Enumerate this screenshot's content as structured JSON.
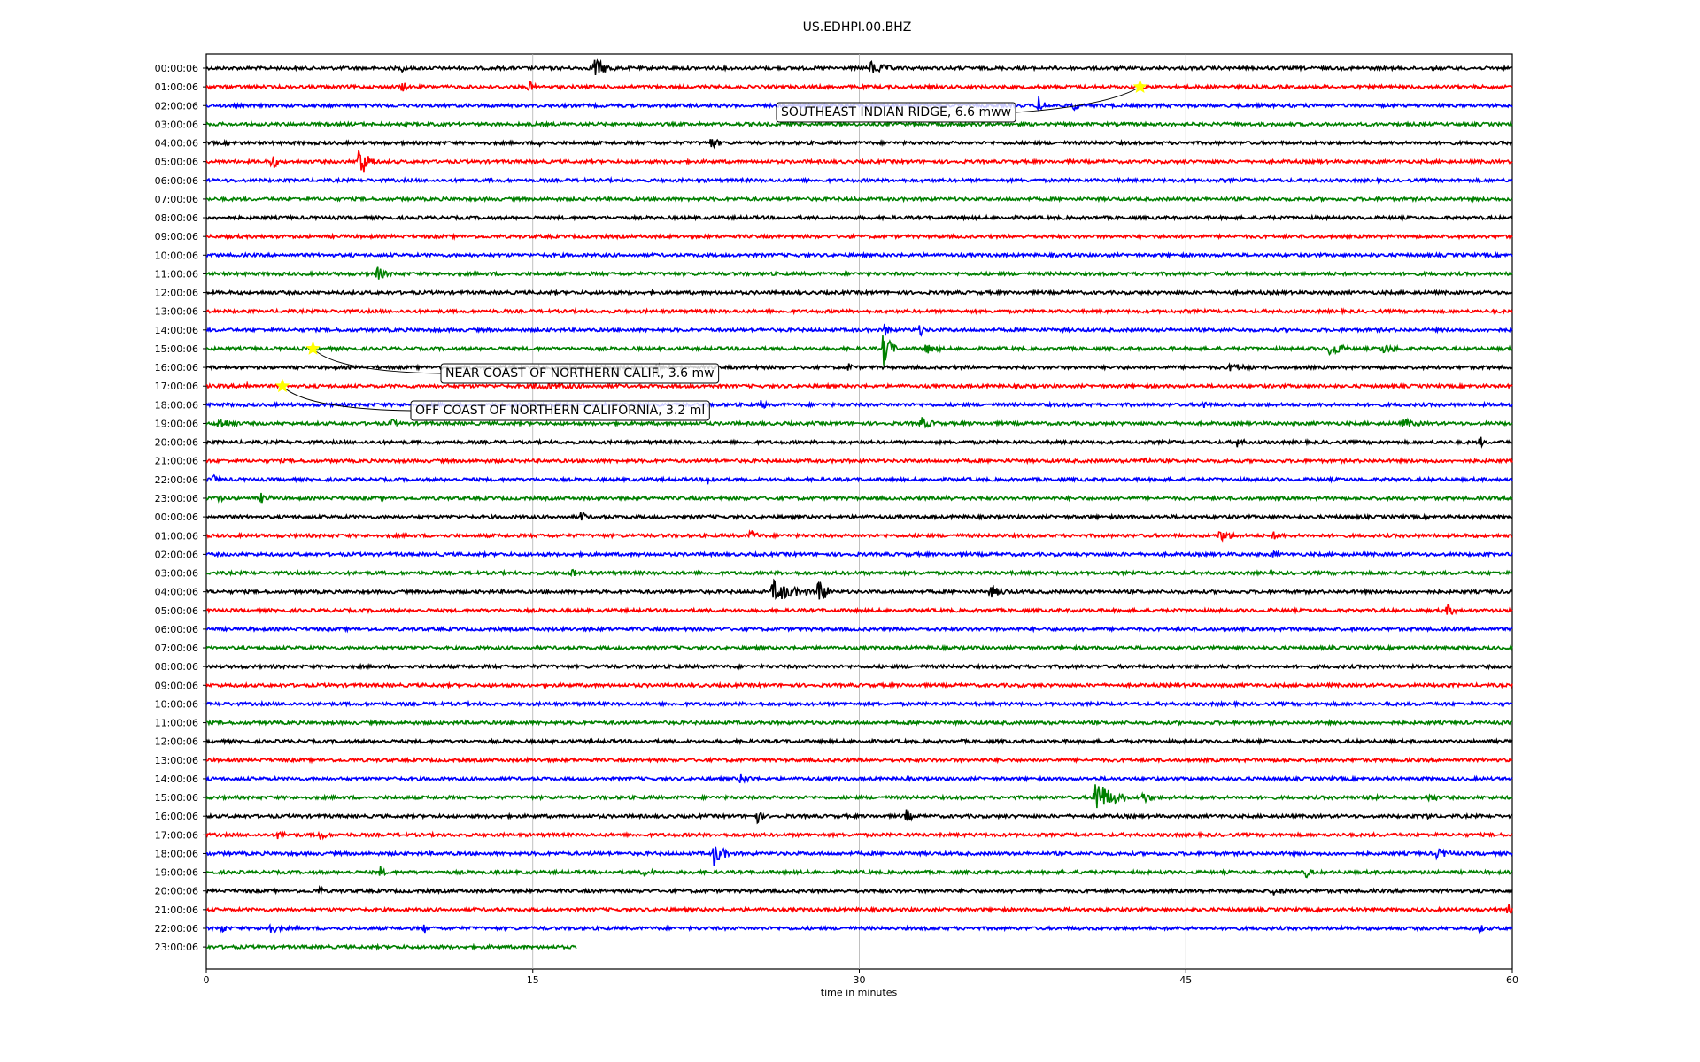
{
  "chart_data": {
    "type": "line",
    "title": "US.EDHPI.00.BHZ",
    "xlabel": "time in minutes",
    "xlim": [
      0,
      60
    ],
    "xticks": [
      0,
      15,
      30,
      45,
      60
    ],
    "grid_x": true,
    "row_labels": [
      "00:00:06",
      "01:00:06",
      "02:00:06",
      "03:00:06",
      "04:00:06",
      "05:00:06",
      "06:00:06",
      "07:00:06",
      "08:00:06",
      "09:00:06",
      "10:00:06",
      "11:00:06",
      "12:00:06",
      "13:00:06",
      "14:00:06",
      "15:00:06",
      "16:00:06",
      "17:00:06",
      "18:00:06",
      "19:00:06",
      "20:00:06",
      "21:00:06",
      "22:00:06",
      "23:00:06",
      "00:00:06",
      "01:00:06",
      "02:00:06",
      "03:00:06",
      "04:00:06",
      "05:00:06",
      "06:00:06",
      "07:00:06",
      "08:00:06",
      "09:00:06",
      "10:00:06",
      "11:00:06",
      "12:00:06",
      "13:00:06",
      "14:00:06",
      "15:00:06",
      "16:00:06",
      "17:00:06",
      "18:00:06",
      "19:00:06",
      "20:00:06",
      "21:00:06",
      "22:00:06",
      "23:00:06"
    ],
    "trace_colors": [
      "#000000",
      "#ff0000",
      "#0000ff",
      "#008000"
    ],
    "last_trace_end_minute": 17,
    "noise_amplitude": 0.15,
    "bursts": [
      {
        "row": 0,
        "minute": 17.8,
        "amp": 1.0,
        "dur": 1.0
      },
      {
        "row": 0,
        "minute": 30.5,
        "amp": 0.6,
        "dur": 1.2
      },
      {
        "row": 0,
        "minute": 9.0,
        "amp": 0.4,
        "dur": 0.3
      },
      {
        "row": 1,
        "minute": 9.0,
        "amp": 0.6,
        "dur": 0.3
      },
      {
        "row": 1,
        "minute": 14.8,
        "amp": 0.6,
        "dur": 0.4
      },
      {
        "row": 2,
        "minute": 38.2,
        "amp": 0.9,
        "dur": 0.5
      },
      {
        "row": 2,
        "minute": 39.8,
        "amp": 0.5,
        "dur": 0.4
      },
      {
        "row": 4,
        "minute": 15.3,
        "amp": 0.4,
        "dur": 0.5
      },
      {
        "row": 4,
        "minute": 23.2,
        "amp": 0.6,
        "dur": 0.5
      },
      {
        "row": 5,
        "minute": 3.0,
        "amp": 1.0,
        "dur": 0.4
      },
      {
        "row": 5,
        "minute": 7.0,
        "amp": 1.8,
        "dur": 0.8
      },
      {
        "row": 11,
        "minute": 7.8,
        "amp": 0.8,
        "dur": 0.6
      },
      {
        "row": 14,
        "minute": 31.2,
        "amp": 0.9,
        "dur": 0.3
      },
      {
        "row": 14,
        "minute": 32.8,
        "amp": 0.6,
        "dur": 0.3
      },
      {
        "row": 15,
        "minute": 31.1,
        "amp": 2.2,
        "dur": 0.6
      },
      {
        "row": 15,
        "minute": 33.0,
        "amp": 0.5,
        "dur": 0.8
      },
      {
        "row": 15,
        "minute": 51.6,
        "amp": 0.8,
        "dur": 1.0
      },
      {
        "row": 15,
        "minute": 54.0,
        "amp": 0.4,
        "dur": 1.2
      },
      {
        "row": 16,
        "minute": 20.7,
        "amp": 0.8,
        "dur": 0.2
      },
      {
        "row": 16,
        "minute": 29.5,
        "amp": 0.4,
        "dur": 0.3
      },
      {
        "row": 16,
        "minute": 47.0,
        "amp": 0.3,
        "dur": 1.5
      },
      {
        "row": 17,
        "minute": 1.8,
        "amp": 0.4,
        "dur": 0.3
      },
      {
        "row": 17,
        "minute": 15.0,
        "amp": 0.2,
        "dur": 4.0
      },
      {
        "row": 18,
        "minute": 25.5,
        "amp": 0.6,
        "dur": 0.3
      },
      {
        "row": 18,
        "minute": 45.8,
        "amp": 0.5,
        "dur": 0.3
      },
      {
        "row": 19,
        "minute": 0.5,
        "amp": 0.6,
        "dur": 1.0
      },
      {
        "row": 19,
        "minute": 8.5,
        "amp": 0.5,
        "dur": 0.3
      },
      {
        "row": 19,
        "minute": 32.8,
        "amp": 0.6,
        "dur": 0.8
      },
      {
        "row": 19,
        "minute": 55.0,
        "amp": 0.5,
        "dur": 0.8
      },
      {
        "row": 20,
        "minute": 47.4,
        "amp": 0.7,
        "dur": 0.3
      },
      {
        "row": 20,
        "minute": 58.5,
        "amp": 0.6,
        "dur": 0.3
      },
      {
        "row": 21,
        "minute": 43.0,
        "amp": 0.6,
        "dur": 0.4
      },
      {
        "row": 22,
        "minute": 0.3,
        "amp": 0.5,
        "dur": 0.3
      },
      {
        "row": 22,
        "minute": 23.0,
        "amp": 0.6,
        "dur": 0.5
      },
      {
        "row": 23,
        "minute": 0.5,
        "amp": 0.6,
        "dur": 0.3
      },
      {
        "row": 23,
        "minute": 2.5,
        "amp": 0.4,
        "dur": 0.6
      },
      {
        "row": 23,
        "minute": 34.0,
        "amp": 0.4,
        "dur": 0.3
      },
      {
        "row": 24,
        "minute": 17.2,
        "amp": 0.6,
        "dur": 0.4
      },
      {
        "row": 25,
        "minute": 25.0,
        "amp": 0.6,
        "dur": 0.5
      },
      {
        "row": 25,
        "minute": 46.5,
        "amp": 0.5,
        "dur": 1.0
      },
      {
        "row": 25,
        "minute": 49.0,
        "amp": 0.3,
        "dur": 0.6
      },
      {
        "row": 26,
        "minute": 49.0,
        "amp": 0.4,
        "dur": 0.3
      },
      {
        "row": 27,
        "minute": 16.8,
        "amp": 0.4,
        "dur": 0.4
      },
      {
        "row": 28,
        "minute": 26.0,
        "amp": 1.1,
        "dur": 1.8
      },
      {
        "row": 28,
        "minute": 28.1,
        "amp": 2.0,
        "dur": 0.6
      },
      {
        "row": 28,
        "minute": 36.0,
        "amp": 0.5,
        "dur": 1.0
      },
      {
        "row": 29,
        "minute": 57.0,
        "amp": 0.6,
        "dur": 0.6
      },
      {
        "row": 38,
        "minute": 24.5,
        "amp": 0.4,
        "dur": 0.8
      },
      {
        "row": 39,
        "minute": 40.8,
        "amp": 2.0,
        "dur": 1.4
      },
      {
        "row": 39,
        "minute": 43.0,
        "amp": 0.6,
        "dur": 0.6
      },
      {
        "row": 39,
        "minute": 53.4,
        "amp": 0.4,
        "dur": 0.4
      },
      {
        "row": 39,
        "minute": 56.2,
        "amp": 0.6,
        "dur": 0.4
      },
      {
        "row": 40,
        "minute": 25.3,
        "amp": 0.9,
        "dur": 0.3
      },
      {
        "row": 40,
        "minute": 32.1,
        "amp": 1.0,
        "dur": 0.4
      },
      {
        "row": 40,
        "minute": 56.0,
        "amp": 0.5,
        "dur": 0.3
      },
      {
        "row": 41,
        "minute": 3.3,
        "amp": 0.5,
        "dur": 0.4
      },
      {
        "row": 41,
        "minute": 5.2,
        "amp": 0.6,
        "dur": 0.4
      },
      {
        "row": 42,
        "minute": 23.3,
        "amp": 1.2,
        "dur": 0.8
      },
      {
        "row": 42,
        "minute": 56.5,
        "amp": 0.4,
        "dur": 1.0
      },
      {
        "row": 43,
        "minute": 8.0,
        "amp": 0.5,
        "dur": 0.3
      },
      {
        "row": 43,
        "minute": 20.0,
        "amp": 0.3,
        "dur": 0.8
      },
      {
        "row": 43,
        "minute": 50.5,
        "amp": 0.6,
        "dur": 0.4
      },
      {
        "row": 44,
        "minute": 5.2,
        "amp": 0.4,
        "dur": 0.3
      },
      {
        "row": 44,
        "minute": 49.0,
        "amp": 0.4,
        "dur": 0.6
      },
      {
        "row": 45,
        "minute": 59.8,
        "amp": 0.5,
        "dur": 0.3
      },
      {
        "row": 46,
        "minute": 0.7,
        "amp": 0.5,
        "dur": 0.3
      },
      {
        "row": 46,
        "minute": 2.8,
        "amp": 0.6,
        "dur": 0.8
      },
      {
        "row": 46,
        "minute": 10.0,
        "amp": 0.5,
        "dur": 0.2
      },
      {
        "row": 46,
        "minute": 58.5,
        "amp": 0.4,
        "dur": 0.3
      }
    ],
    "events": [
      {
        "label": "SOUTHEAST INDIAN RIDGE, 6.6 mww",
        "row": 1,
        "minute": 42.9
      },
      {
        "label": "NEAR COAST OF NORTHERN CALIF., 3.6 mw",
        "row": 15,
        "minute": 4.9
      },
      {
        "label": "OFF COAST OF NORTHERN CALIFORNIA, 3.2 ml",
        "row": 17,
        "minute": 3.5
      }
    ]
  }
}
